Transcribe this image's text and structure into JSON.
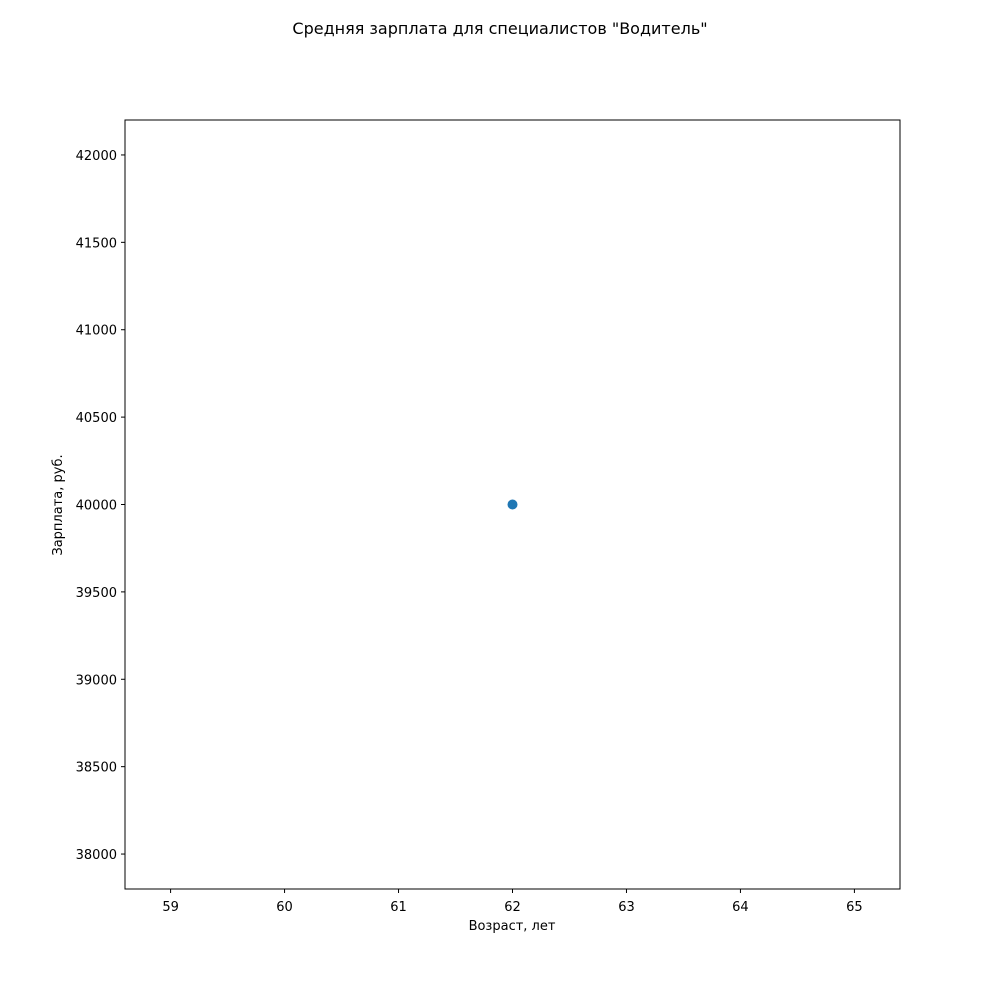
{
  "chart_data": {
    "type": "scatter",
    "title": "Средняя зарплата для специалистов \"Водитель\"",
    "xlabel": "Возраст, лет",
    "ylabel": "Зарплата, руб.",
    "xlim": [
      58.6,
      65.4
    ],
    "ylim": [
      37800,
      42200
    ],
    "xticks": [
      59,
      60,
      61,
      62,
      63,
      64,
      65
    ],
    "yticks": [
      38000,
      38500,
      39000,
      39500,
      40000,
      40500,
      41000,
      41500,
      42000
    ],
    "grid": false,
    "series": [
      {
        "color": "#1f77b4",
        "points": [
          {
            "x": 62,
            "y": 40000
          }
        ]
      }
    ]
  }
}
